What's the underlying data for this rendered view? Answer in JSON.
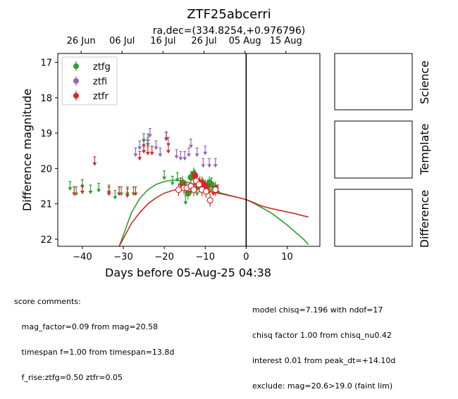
{
  "chart_data": {
    "type": "scatter",
    "title": "ZTF25abcerri",
    "subtitle": "ra,dec=(334.8254,+0.976796)",
    "xlabel": "Days before 05-Aug-25 04:38",
    "ylabel": "Difference magnitude",
    "xlim": [
      -46,
      18
    ],
    "ylim": [
      22.2,
      16.75
    ],
    "y_inverted": true,
    "xticks": [
      -40,
      -30,
      -20,
      -10,
      0,
      10
    ],
    "xtick_labels": [
      "−40",
      "−30",
      "−20",
      "−10",
      "0",
      "10"
    ],
    "yticks": [
      17,
      18,
      19,
      20,
      21,
      22
    ],
    "top_axis_ticks": [
      {
        "x": -40.3,
        "label": "26 Jun"
      },
      {
        "x": -30.3,
        "label": "06 Jul"
      },
      {
        "x": -20.3,
        "label": "16 Jul"
      },
      {
        "x": -10.3,
        "label": "26 Jul"
      },
      {
        "x": -0.3,
        "label": "05 Aug"
      },
      {
        "x": 9.7,
        "label": "15 Aug"
      }
    ],
    "vline_x": 0,
    "grid": false,
    "legend_position": "top-left",
    "series": [
      {
        "name": "ztfg",
        "color": "#2ca02c",
        "detections": [
          [
            -15.5,
            20.4
          ],
          [
            -14.8,
            20.55
          ],
          [
            -14.2,
            20.7
          ],
          [
            -13.5,
            20.25
          ],
          [
            -12.8,
            20.15
          ],
          [
            -12.2,
            20.35
          ],
          [
            -11.5,
            20.5
          ],
          [
            -10.8,
            20.4
          ],
          [
            -9.5,
            20.5
          ],
          [
            -9.0,
            20.4
          ],
          [
            -8.5,
            20.45
          ],
          [
            -7.5,
            20.55
          ]
        ],
        "upper_limits": [
          [
            -43,
            20.45
          ],
          [
            -41.5,
            20.6
          ],
          [
            -40,
            20.4
          ],
          [
            -38,
            20.55
          ],
          [
            -36,
            20.5
          ],
          [
            -33.5,
            20.55
          ],
          [
            -32,
            20.7
          ],
          [
            -30.5,
            20.6
          ],
          [
            -29,
            20.6
          ],
          [
            -27.5,
            20.6
          ],
          [
            -25,
            19.1
          ],
          [
            -24,
            19.2
          ],
          [
            -20,
            20.15
          ],
          [
            -18,
            20.3
          ],
          [
            -16.8,
            20.2
          ],
          [
            -14.8,
            20.85
          ],
          [
            -12,
            20.6
          ],
          [
            -11,
            20.5
          ],
          [
            -8.5,
            20.35
          ],
          [
            -8,
            20.5
          ],
          [
            -7,
            20.55
          ]
        ],
        "model_curve": [
          [
            -31,
            22.2
          ],
          [
            -28,
            21.25
          ],
          [
            -26,
            20.85
          ],
          [
            -24,
            20.6
          ],
          [
            -22,
            20.45
          ],
          [
            -20,
            20.37
          ],
          [
            -18,
            20.33
          ],
          [
            -16,
            20.35
          ],
          [
            -14,
            20.4
          ],
          [
            -12,
            20.47
          ],
          [
            -10,
            20.55
          ],
          [
            -8,
            20.62
          ],
          [
            -6,
            20.7
          ],
          [
            -4,
            20.76
          ],
          [
            -2,
            20.82
          ],
          [
            0,
            20.88
          ],
          [
            2,
            20.99
          ],
          [
            4,
            21.12
          ],
          [
            6,
            21.25
          ],
          [
            8,
            21.42
          ],
          [
            10,
            21.6
          ],
          [
            12,
            21.8
          ],
          [
            14,
            22.0
          ],
          [
            15.2,
            22.15
          ]
        ]
      },
      {
        "name": "ztfi",
        "color": "#9467bd",
        "detections": [],
        "upper_limits": [
          [
            -27,
            19.5
          ],
          [
            -26,
            19.3
          ],
          [
            -25,
            19.25
          ],
          [
            -24,
            19.1
          ],
          [
            -23.5,
            18.95
          ],
          [
            -22,
            19.3
          ],
          [
            -21,
            19.5
          ],
          [
            -19.5,
            19.05
          ],
          [
            -19,
            19.2
          ],
          [
            -17,
            19.55
          ],
          [
            -16,
            19.6
          ],
          [
            -15,
            19.6
          ],
          [
            -14,
            19.5
          ],
          [
            -13.5,
            19.25
          ],
          [
            -12,
            19.5
          ],
          [
            -10.5,
            19.8
          ],
          [
            -10,
            19.45
          ],
          [
            -9,
            19.8
          ],
          [
            -7.5,
            19.8
          ]
        ]
      },
      {
        "name": "ztfr",
        "color": "#d62728",
        "detections_filled": [
          [
            -12.5,
            20.2
          ],
          [
            -11.3,
            20.4
          ],
          [
            -10.5,
            20.45
          ],
          [
            -10.0,
            20.5
          ]
        ],
        "detections_open": [
          [
            -16.5,
            20.6
          ],
          [
            -15.2,
            20.55
          ],
          [
            -14.5,
            20.55
          ],
          [
            -13.5,
            20.5
          ],
          [
            -12.8,
            20.6
          ],
          [
            -12.2,
            20.35
          ],
          [
            -11.5,
            20.45
          ],
          [
            -10.8,
            20.6
          ],
          [
            -9.8,
            20.65
          ],
          [
            -8.8,
            20.9
          ],
          [
            -7.5,
            20.6
          ]
        ],
        "upper_limits": [
          [
            -42,
            20.6
          ],
          [
            -40,
            20.55
          ],
          [
            -37,
            19.75
          ],
          [
            -33.5,
            20.6
          ],
          [
            -31,
            20.6
          ],
          [
            -29,
            20.65
          ],
          [
            -27,
            20.6
          ],
          [
            -26,
            19.6
          ],
          [
            -25,
            19.4
          ],
          [
            -24,
            19.45
          ],
          [
            -23,
            19.45
          ],
          [
            -19.5,
            19.05
          ],
          [
            -19,
            19.4
          ],
          [
            -16,
            20.35
          ],
          [
            -15,
            20.45
          ],
          [
            -13.5,
            20.55
          ],
          [
            -12.5,
            20.45
          ],
          [
            -10,
            20.5
          ],
          [
            -9,
            20.55
          ],
          [
            -8,
            20.6
          ],
          [
            -7,
            20.55
          ]
        ],
        "model_curve": [
          [
            -31,
            22.2
          ],
          [
            -28,
            21.55
          ],
          [
            -26,
            21.25
          ],
          [
            -24,
            21.0
          ],
          [
            -22,
            20.83
          ],
          [
            -20,
            20.7
          ],
          [
            -18,
            20.62
          ],
          [
            -16,
            20.58
          ],
          [
            -14,
            20.57
          ],
          [
            -12,
            20.58
          ],
          [
            -10,
            20.62
          ],
          [
            -8,
            20.67
          ],
          [
            -6,
            20.72
          ],
          [
            -4,
            20.77
          ],
          [
            -2,
            20.82
          ],
          [
            0,
            20.88
          ],
          [
            2,
            20.97
          ],
          [
            4,
            21.07
          ],
          [
            6,
            21.13
          ],
          [
            8,
            21.18
          ],
          [
            10,
            21.23
          ],
          [
            12,
            21.28
          ],
          [
            14,
            21.34
          ],
          [
            15.2,
            21.37
          ]
        ]
      }
    ],
    "side_panels": [
      "Science",
      "Template",
      "Difference"
    ]
  },
  "comments": {
    "left": [
      "score comments:",
      "   mag_factor=0.09 from mag=20.58",
      "   timespan f=1.00 from timespan=13.8d",
      "   f_rise:ztfg=0.50 ztfr=0.05"
    ],
    "right": [
      "model chisq=7.196 with ndof=17",
      "chisq factor 1.00 from chisq_nu0.42",
      "interest 0.01 from peak_dt=+14.10d",
      "exclude: mag=20.6>19.0 (faint lim)"
    ]
  }
}
